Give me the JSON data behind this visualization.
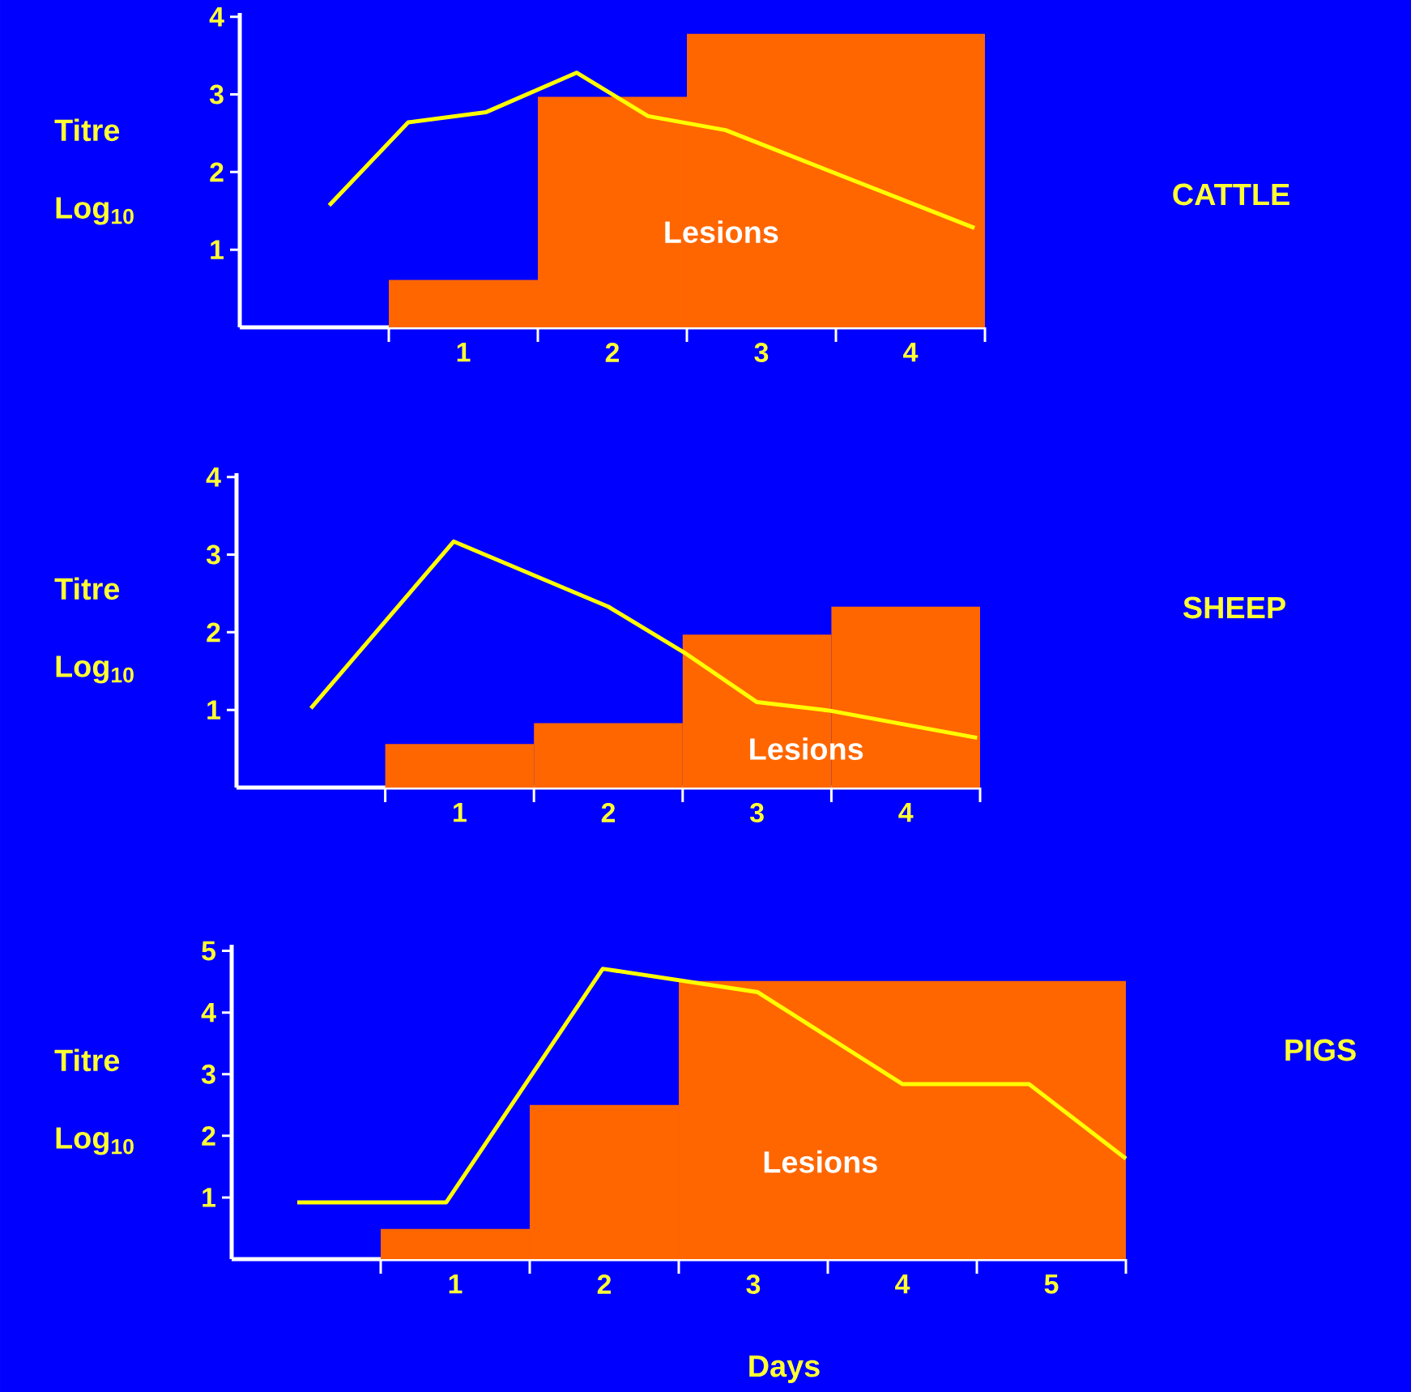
{
  "chart_data": [
    {
      "type": "bar",
      "y2label": "CATTLE",
      "ylabel": "Titre Log$_{10}$",
      "xlim": [
        -0.5,
        4.5
      ],
      "ylim": [
        0,
        4.05
      ],
      "yticks": [
        1,
        2,
        3,
        4
      ],
      "xticks": [
        {
          "value": 0.5,
          "label": null
        },
        {
          "value": 1,
          "label": "1"
        },
        {
          "value": 1.5,
          "label": null
        },
        {
          "value": 2,
          "label": "2"
        },
        {
          "value": 2.5,
          "label": null
        },
        {
          "value": 3,
          "label": "3"
        },
        {
          "value": 3.5,
          "label": null
        },
        {
          "value": 4,
          "label": "4"
        },
        {
          "value": 4.5,
          "label": null
        }
      ],
      "annotations": [
        "Lesions"
      ],
      "series": [
        {
          "color": "#ff6600",
          "x": [
            1,
            2,
            3,
            4
          ],
          "values": [
            0.61,
            2.97,
            3.78,
            3.78
          ]
        },
        {
          "type": "line",
          "color": "#ffff00",
          "x": [
            0.1,
            0.63,
            1.15,
            1.76,
            2.24,
            2.76,
            4.43
          ],
          "values": [
            1.57,
            2.64,
            2.77,
            3.28,
            2.72,
            2.54,
            1.28
          ]
        }
      ]
    },
    {
      "type": "bar",
      "y2label": "SHEEP",
      "ylabel": "Titre Log$_{10}$",
      "xlim": [
        -0.5,
        4.5
      ],
      "ylim": [
        0,
        4.05
      ],
      "yticks": [
        1,
        2,
        3,
        4
      ],
      "xticks": [
        {
          "value": 0.5,
          "label": null
        },
        {
          "value": 1,
          "label": "1"
        },
        {
          "value": 1.5,
          "label": null
        },
        {
          "value": 2,
          "label": "2"
        },
        {
          "value": 2.5,
          "label": null
        },
        {
          "value": 3,
          "label": "3"
        },
        {
          "value": 3.5,
          "label": null
        },
        {
          "value": 4,
          "label": "4"
        },
        {
          "value": 4.5,
          "label": null
        }
      ],
      "annotations": [
        "Lesions"
      ],
      "series": [
        {
          "color": "#ff6600",
          "x": [
            1,
            2,
            3,
            4
          ],
          "values": [
            0.56,
            0.83,
            1.97,
            2.33
          ]
        },
        {
          "type": "line",
          "color": "#ffff00",
          "x": [
            0.0,
            0.96,
            2.0,
            2.51,
            3.0,
            3.49,
            4.48
          ],
          "values": [
            1.02,
            3.17,
            2.33,
            1.74,
            1.1,
            0.99,
            0.64
          ]
        }
      ]
    },
    {
      "type": "bar",
      "y2label": "PIGS",
      "ylabel": "Titre Log$_{10}$",
      "xlabel": "Days",
      "xlim": [
        -0.5,
        5.5
      ],
      "ylim": [
        0,
        5.1
      ],
      "yticks": [
        1,
        2,
        3,
        4,
        5
      ],
      "xticks": [
        {
          "value": 0.5,
          "label": null
        },
        {
          "value": 1,
          "label": "1"
        },
        {
          "value": 1.5,
          "label": null
        },
        {
          "value": 2,
          "label": "2"
        },
        {
          "value": 2.5,
          "label": null
        },
        {
          "value": 3,
          "label": "3"
        },
        {
          "value": 3.5,
          "label": null
        },
        {
          "value": 4,
          "label": "4"
        },
        {
          "value": 4.5,
          "label": null
        },
        {
          "value": 5,
          "label": "5"
        },
        {
          "value": 5.5,
          "label": null
        }
      ],
      "annotations": [
        "Lesions"
      ],
      "series": [
        {
          "color": "#ff6600",
          "x": [
            1,
            2,
            3,
            4,
            5
          ],
          "values": [
            0.49,
            2.5,
            4.51,
            4.51,
            4.51
          ]
        },
        {
          "type": "line",
          "color": "#ffff00",
          "x": [
            -0.06,
            0.94,
            1.99,
            3.03,
            4.0,
            4.85,
            5.5
          ],
          "values": [
            0.92,
            0.92,
            4.71,
            4.33,
            2.84,
            2.84,
            1.63
          ]
        }
      ]
    }
  ]
}
